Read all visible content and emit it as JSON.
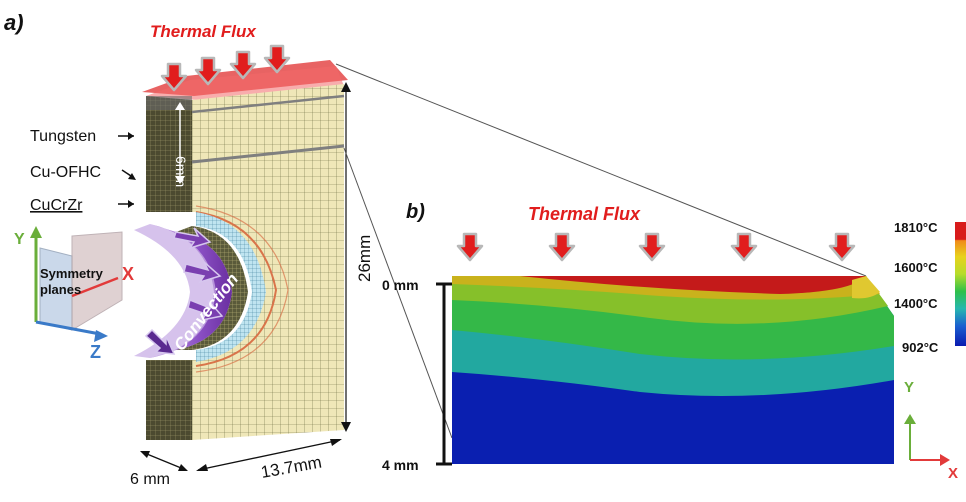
{
  "panel_a": {
    "letter": "a)",
    "flux_label": "Thermal Flux",
    "materials": [
      "Tungsten",
      "Cu-OFHC",
      "CuCrZr"
    ],
    "dim_6mm_vertical": "6mm",
    "dim_height": "26mm",
    "dim_width_small": "6 mm",
    "dim_width_large": "13.7mm",
    "convection_label": "Convection",
    "symmetry_label_line1": "Symmetry",
    "symmetry_label_line2": "planes",
    "axis_y": "Y",
    "axis_x": "X",
    "axis_z": "Z"
  },
  "panel_b": {
    "letter": "b)",
    "flux_label": "Thermal Flux",
    "depth_top": "0 mm",
    "depth_bottom": "4 mm",
    "axis_y": "Y",
    "axis_x": "X",
    "colorbar": {
      "labels": [
        "1810°C",
        "1600°C",
        "1400°C",
        "902°C"
      ],
      "colors": [
        "#d81b1b",
        "#f08a1a",
        "#e8d21c",
        "#9ad62a",
        "#2fc04a",
        "#27b7b0",
        "#1a5fd0",
        "#0a1ab0"
      ]
    },
    "band_colors": [
      "#c41a1a",
      "#c9b21c",
      "#86c02a",
      "#22a8a0",
      "#0a1fb0"
    ]
  },
  "colors": {
    "flux_red": "#e11d1d",
    "arrow_fill": "#e11d1d",
    "arrow_edge": "#b8b8b8",
    "convection_purple": "#7a3fb0",
    "mesh_fill": "#efe7b8",
    "mesh_line": "#5a5a3a"
  }
}
